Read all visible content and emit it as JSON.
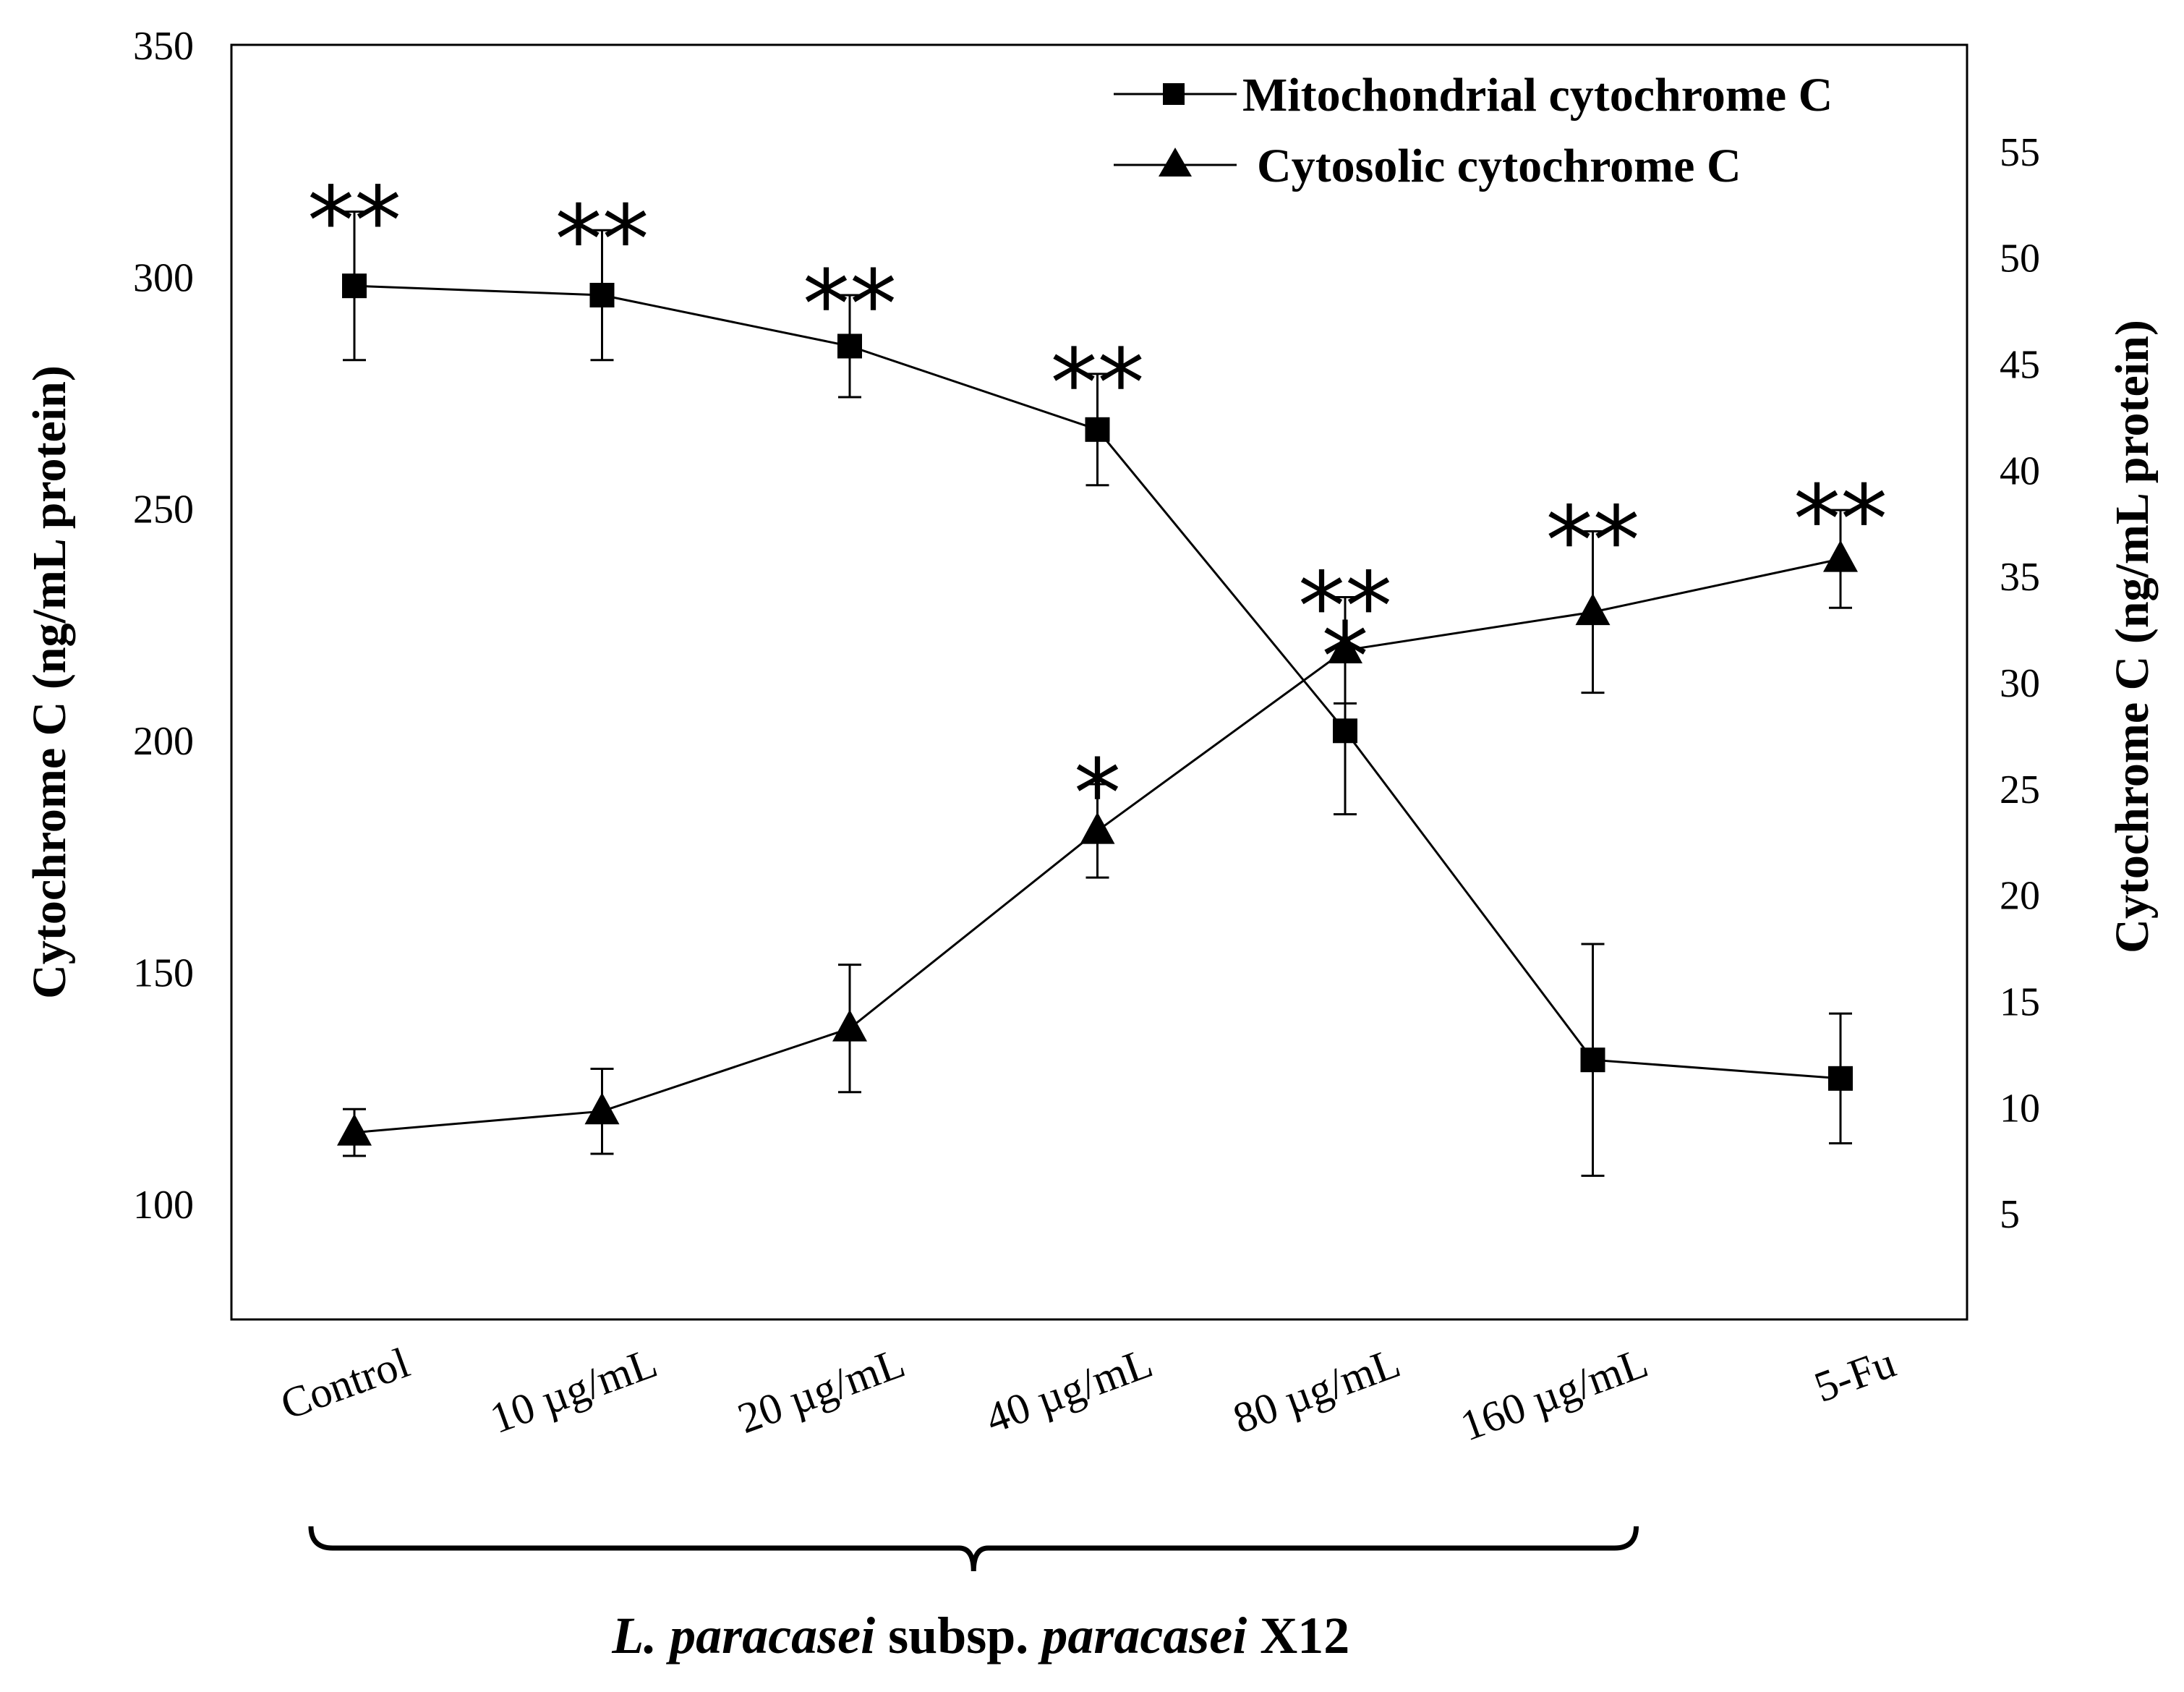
{
  "chart_data": {
    "type": "line",
    "categories": [
      "Control",
      "10 µg/mL",
      "20 µg/mL",
      "40 µg/mL",
      "80 µg/mL",
      "160 µg/mL",
      "5-Fu"
    ],
    "left_axis": {
      "label": "Cytochrome C (ng/mL protein)",
      "ylim": [
        75,
        350
      ],
      "ticks": [
        100,
        150,
        200,
        250,
        300,
        350
      ]
    },
    "right_axis": {
      "label": "Cytochrome C (ng/mL protein)",
      "ylim": [
        0,
        60
      ],
      "ticks": [
        5,
        10,
        15,
        20,
        25,
        30,
        35,
        40,
        45,
        50,
        55
      ]
    },
    "series": [
      {
        "name": "Mitochondrial cytochrome C",
        "axis": "left",
        "marker": "square",
        "values": [
          298,
          296,
          285,
          267,
          202,
          131,
          127
        ],
        "errors": [
          16,
          14,
          11,
          12,
          18,
          25,
          14
        ],
        "significance": [
          "**",
          "**",
          "**",
          "**",
          "*",
          "",
          ""
        ]
      },
      {
        "name": "Cytosolic cytochrome C",
        "axis": "right",
        "marker": "triangle",
        "values": [
          8.8,
          9.8,
          13.7,
          23.0,
          31.5,
          33.3,
          35.8
        ],
        "errors": [
          1.1,
          2.0,
          3.0,
          2.2,
          2.5,
          3.8,
          2.3
        ],
        "significance": [
          "",
          "",
          "",
          "*",
          "**",
          "**",
          "**"
        ]
      }
    ],
    "group_label_parts": [
      {
        "text": "L. paracasei",
        "italic": true
      },
      {
        "text": " subsp. ",
        "italic": false
      },
      {
        "text": "paracasei",
        "italic": true
      },
      {
        "text": " X12",
        "italic": false
      }
    ],
    "group_span": [
      "Control",
      "160 µg/mL"
    ],
    "legend_position": "top-right"
  }
}
